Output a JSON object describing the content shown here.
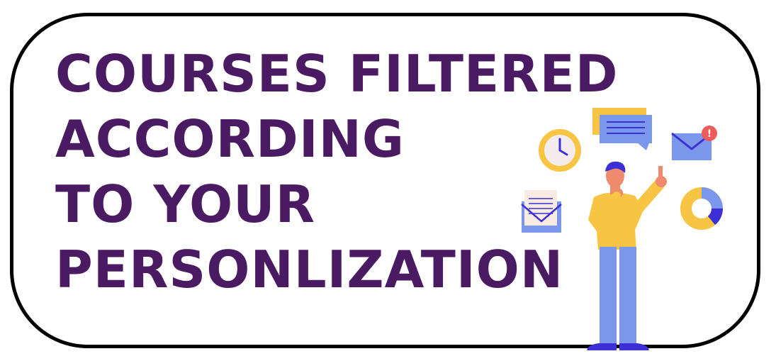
{
  "headline": {
    "lines": [
      "COURSES FILTERED",
      "ACCORDING",
      "TO YOUR",
      "PERSONLIZATION"
    ]
  },
  "colors": {
    "headline_text": "#4a1a63",
    "frame_border": "#000000",
    "background": "#ffffff",
    "accent_yellow": "#f7c443",
    "accent_blue": "#7b97ec",
    "accent_indigo": "#3d2fd6",
    "skin": "#f08a6c",
    "alert_red": "#ef5a5a"
  },
  "illustration": {
    "icons": [
      "clock-icon",
      "chat-bubble-icon",
      "email-alert-icon",
      "open-envelope-letter-icon",
      "donut-chart-icon"
    ],
    "alert_badge": "!"
  }
}
